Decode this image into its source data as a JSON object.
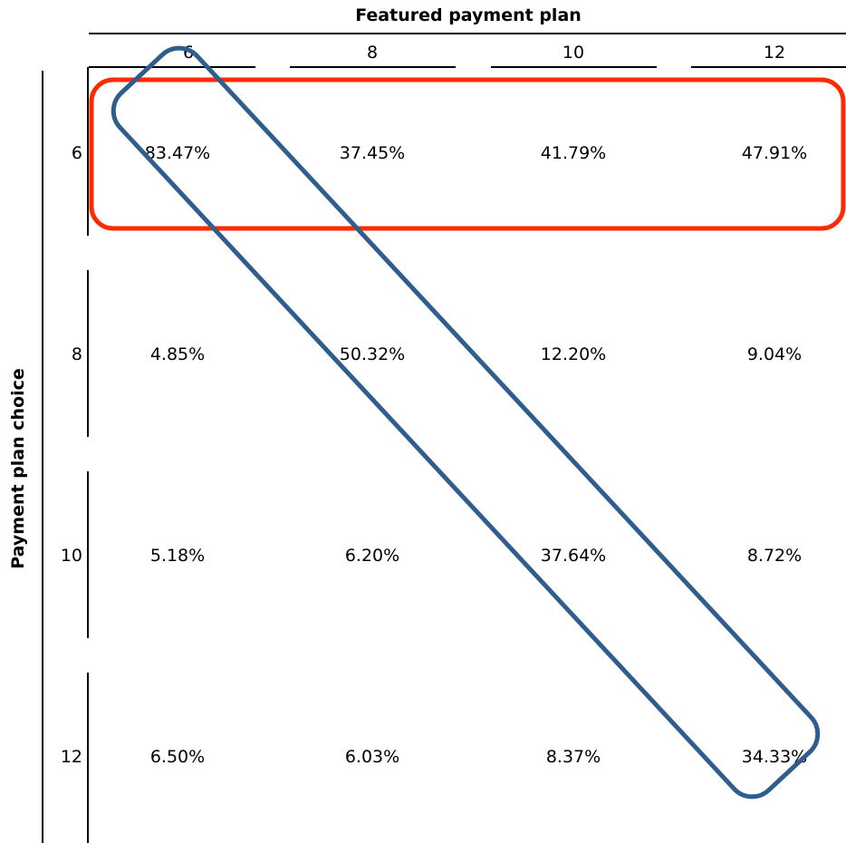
{
  "chart_data": {
    "type": "table",
    "col_axis_title": "Featured payment plan",
    "row_axis_title": "Payment plan choice",
    "columns": [
      "6",
      "8",
      "10",
      "12"
    ],
    "rows": [
      "6",
      "8",
      "10",
      "12"
    ],
    "cells": [
      [
        "83.47%",
        "37.45%",
        "41.79%",
        "47.91%"
      ],
      [
        "4.85%",
        "50.32%",
        "12.20%",
        "9.04%"
      ],
      [
        "5.18%",
        "6.20%",
        "37.64%",
        "8.72%"
      ],
      [
        "6.50%",
        "6.03%",
        "8.37%",
        "34.33%"
      ]
    ],
    "highlights": [
      {
        "kind": "row",
        "row": 0,
        "color": "#ff2a00"
      },
      {
        "kind": "diagonal",
        "color": "#2e5d8e"
      }
    ]
  }
}
